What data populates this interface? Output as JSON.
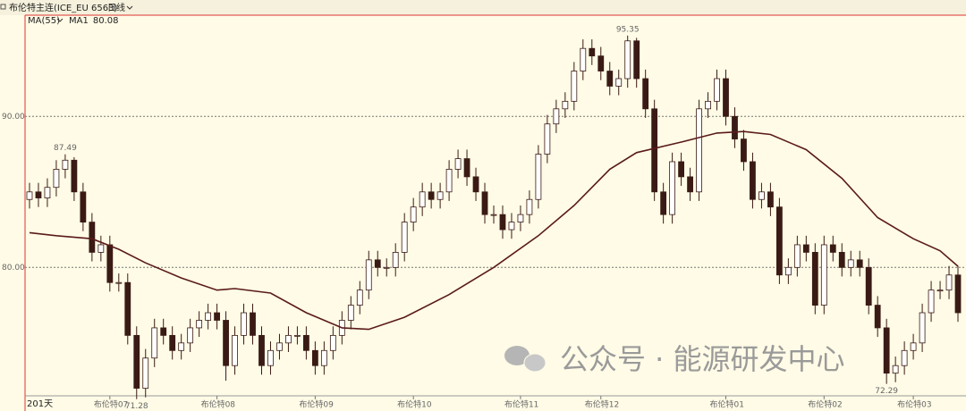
{
  "chart_data": {
    "type": "candlestick",
    "title": "布伦特主连(ICE_EU 6563)",
    "period": "日线",
    "indicator": "MA(55)",
    "bar_count": "201天",
    "watermark": "公众号 · 能源研发中心",
    "categories": [
      null,
      null,
      null,
      null,
      null,
      null,
      null,
      null,
      null,
      "布伦特07",
      null,
      null,
      null,
      null,
      null,
      null,
      null,
      null,
      null,
      null,
      null,
      "布伦特08",
      null,
      null,
      null,
      null,
      null,
      null,
      null,
      null,
      null,
      null,
      "布伦特09",
      null,
      null,
      null,
      null,
      null,
      null,
      null,
      null,
      null,
      null,
      "布伦特10",
      null,
      null,
      null,
      null,
      null,
      null,
      null,
      null,
      null,
      null,
      null,
      "布伦特11",
      null,
      null,
      null,
      null,
      null,
      null,
      null,
      null,
      "布伦特12",
      null,
      null,
      null,
      null,
      null,
      null,
      null,
      null,
      null,
      null,
      null,
      null,
      null,
      "布伦特01",
      null,
      null,
      null,
      null,
      null,
      null,
      null,
      null,
      null,
      null,
      "布伦特02",
      null,
      null,
      null,
      null,
      null,
      null,
      null,
      null,
      null,
      "布伦特03",
      null,
      null,
      null,
      null,
      null
    ],
    "open": [
      84.5,
      85,
      84.6,
      85.3,
      86.5,
      87.1,
      85,
      83,
      81,
      81.5,
      79,
      79,
      75.5,
      72,
      74,
      76,
      75.5,
      74.5,
      75,
      76,
      76.5,
      77,
      76.5,
      73.5,
      75.5,
      77,
      75.5,
      73.5,
      74.5,
      75,
      75.5,
      75.5,
      74.5,
      73.5,
      74.5,
      75.5,
      76.5,
      77.5,
      78.5,
      80.5,
      80,
      80,
      81,
      83,
      84,
      85,
      84.5,
      85,
      86.5,
      87.2,
      86,
      85,
      83.5,
      83.5,
      82.5,
      83,
      83.5,
      84.5,
      87.5,
      89.5,
      90.5,
      91,
      93,
      94.5,
      94,
      93,
      92,
      92.5,
      95,
      92.5,
      90.5,
      85,
      83.5,
      87,
      86,
      85,
      90.5,
      91,
      92.5,
      90,
      88.5,
      87,
      84.5,
      85,
      84,
      79.5,
      80,
      81.5,
      81,
      77.5,
      81.5,
      81,
      80,
      80.5,
      80,
      77.5,
      76,
      73,
      73.5,
      74.5,
      75,
      77,
      78.5,
      78.5,
      79.5
    ],
    "high": [
      85.6,
      85.6,
      85.9,
      87.1,
      87.49,
      87.3,
      85.6,
      83.6,
      82.1,
      82.1,
      79.6,
      79.6,
      76.1,
      74.6,
      76.6,
      76.6,
      76.1,
      75.6,
      76.6,
      77.1,
      77.6,
      77.6,
      77.1,
      76.1,
      77.6,
      77.6,
      76.1,
      75.1,
      75.6,
      76.1,
      76.1,
      76.1,
      75.1,
      75.1,
      76.1,
      77.1,
      78.1,
      79.1,
      81.1,
      81.1,
      80.6,
      81.6,
      83.6,
      84.6,
      85.6,
      85.6,
      85.6,
      87.1,
      87.8,
      87.8,
      86.6,
      85.6,
      84.1,
      84.1,
      83.6,
      84.1,
      85.1,
      88.1,
      90.1,
      91.1,
      91.6,
      93.6,
      95.1,
      95.1,
      94.6,
      93.6,
      93.1,
      95.35,
      95.2,
      93.1,
      91.1,
      85.6,
      87.6,
      87.6,
      86.6,
      91.1,
      91.6,
      93.1,
      93.1,
      90.6,
      89.1,
      87.6,
      85.6,
      85.6,
      84.6,
      80.6,
      82.1,
      82.1,
      81.6,
      82.1,
      82.1,
      81.6,
      81.1,
      81.1,
      80.6,
      78.1,
      76.6,
      74.1,
      75.1,
      75.6,
      77.6,
      79.1,
      79.1,
      80.1,
      80.1
    ],
    "low": [
      83.9,
      84,
      84,
      84.7,
      85.9,
      84.4,
      82.4,
      80.4,
      80.4,
      78.4,
      78.4,
      74.9,
      71.28,
      71.4,
      73.4,
      74.9,
      73.9,
      73.9,
      74.4,
      75.4,
      75.9,
      75.9,
      72.5,
      72.9,
      74.9,
      74.9,
      72.9,
      72.9,
      73.9,
      74.4,
      74.9,
      73.9,
      72.9,
      72.9,
      73.9,
      74.9,
      75.9,
      76.9,
      77.9,
      79.4,
      79.4,
      79.4,
      80.4,
      82.4,
      83.4,
      83.9,
      83.9,
      84.4,
      85.9,
      85.4,
      84.4,
      82.9,
      82.9,
      81.9,
      81.9,
      82.4,
      82.9,
      83.9,
      86.9,
      88.9,
      89.9,
      90.4,
      92.4,
      93.4,
      92.4,
      91.4,
      91.4,
      91.9,
      91.9,
      89.9,
      84.4,
      82.9,
      82.9,
      85.4,
      84.4,
      84.4,
      89.9,
      90.4,
      89.4,
      87.9,
      86.4,
      83.9,
      83.9,
      83.4,
      78.9,
      78.9,
      79.4,
      80.4,
      76.9,
      76.9,
      80.4,
      79.4,
      79.4,
      79.4,
      76.9,
      75.4,
      72.29,
      72.4,
      72.9,
      73.9,
      74.4,
      76.4,
      77.9,
      77.9,
      76.4
    ],
    "close": [
      85,
      84.6,
      85.3,
      86.5,
      87.1,
      85,
      83,
      81,
      81.5,
      79,
      79,
      75.5,
      72,
      74,
      76,
      75.5,
      74.5,
      75,
      76,
      76.5,
      77,
      76.5,
      73.5,
      75.5,
      77,
      75.5,
      73.5,
      74.5,
      75,
      75.5,
      75.5,
      74.5,
      73.5,
      74.5,
      75.5,
      76.5,
      77.5,
      78.5,
      80.5,
      80,
      80,
      81,
      83,
      84,
      85,
      84.5,
      85,
      86.5,
      87.2,
      86,
      85,
      83.5,
      83.5,
      82.5,
      83,
      83.5,
      84.5,
      87.5,
      89.5,
      90.5,
      91,
      93,
      94.5,
      94,
      93,
      92,
      92.5,
      95,
      92.5,
      90.5,
      85,
      83.5,
      87,
      86,
      85,
      90.5,
      91,
      92.5,
      90,
      88.5,
      87,
      84.5,
      85,
      84,
      79.5,
      80,
      81.5,
      81,
      77.5,
      81.5,
      81,
      80,
      80.5,
      80,
      77.5,
      76,
      73,
      73.5,
      74.5,
      75,
      77,
      78.5,
      78.5,
      79.5,
      77
    ],
    "up_color": "#ffffff",
    "down_color": "#3a1a14",
    "outline_color": "#3a1a14",
    "series": [
      {
        "name": "MA1",
        "color": "#5a1a1a",
        "x": [
          0,
          3,
          7,
          10,
          13,
          17,
          21,
          23,
          27,
          31,
          35,
          38,
          42,
          47,
          52,
          57,
          61,
          65,
          68,
          73,
          77,
          80,
          83,
          87,
          91,
          95,
          99,
          102,
          104
        ],
        "values": [
          82.3,
          82.1,
          81.9,
          81.2,
          80.3,
          79.3,
          78.5,
          78.6,
          78.3,
          77.0,
          76.0,
          75.9,
          76.7,
          78.2,
          80.0,
          82.1,
          84.1,
          86.5,
          87.6,
          88.3,
          88.9,
          89.0,
          88.8,
          87.8,
          85.9,
          83.3,
          81.9,
          81.1,
          80.08
        ]
      }
    ],
    "legend_value": 80.08,
    "annotations": [
      {
        "label": "87.49",
        "value": 87.49,
        "x": 4,
        "position": "above"
      },
      {
        "label": "95.35",
        "value": 95.35,
        "x": 67,
        "position": "above"
      },
      {
        "label": "71.28",
        "value": 71.28,
        "x": 12,
        "position": "below"
      },
      {
        "label": "72.29",
        "value": 72.29,
        "x": 96,
        "position": "below"
      }
    ],
    "ylim": [
      71.5,
      96.7
    ],
    "yticks": [
      {
        "value": 80,
        "label": "80.00"
      },
      {
        "value": 90,
        "label": "90.00"
      }
    ],
    "grid": true
  }
}
